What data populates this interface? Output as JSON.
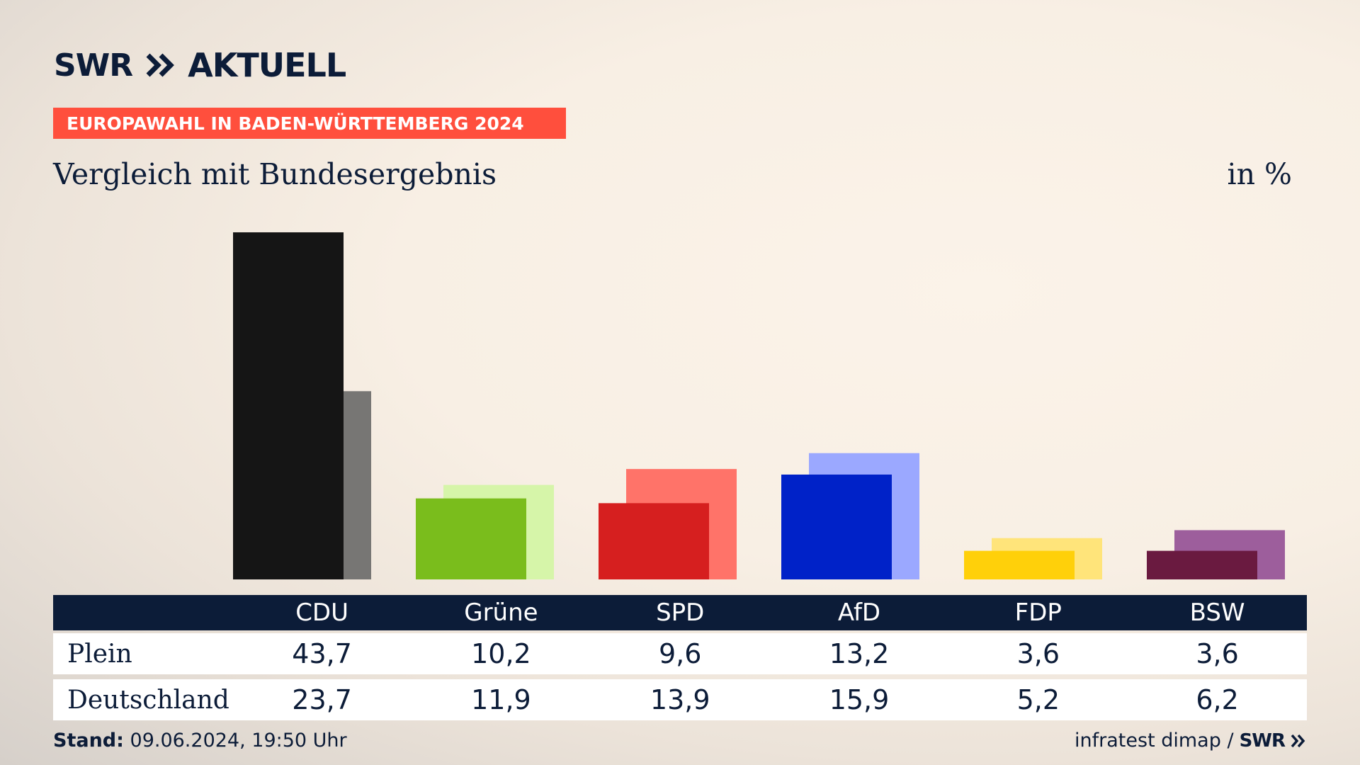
{
  "brand": {
    "swr": "SWR",
    "aktuell": "AKTUELL"
  },
  "banner": "EUROPAWAHL IN BADEN-WÜRTTEMBERG 2024",
  "subtitle": "Vergleich mit Bundesergebnis",
  "unit": "in %",
  "chart_data": {
    "type": "bar",
    "categories": [
      "CDU",
      "Grüne",
      "SPD",
      "AfD",
      "FDP",
      "BSW"
    ],
    "series": [
      {
        "name": "Plein",
        "values": [
          43.7,
          10.2,
          9.6,
          13.2,
          3.6,
          3.6
        ],
        "colors": [
          "#151515",
          "#7abd1c",
          "#d61f1f",
          "#0022c8",
          "#ffd00a",
          "#6a1a40"
        ]
      },
      {
        "name": "Deutschland",
        "values": [
          23.7,
          11.9,
          13.9,
          15.9,
          5.2,
          6.2
        ],
        "colors": [
          "#777674",
          "#d6f5a9",
          "#ff7369",
          "#9ba8ff",
          "#ffe47a",
          "#9d5e9c"
        ]
      }
    ],
    "value_labels": {
      "Plein": [
        "43,7",
        "10,2",
        "9,6",
        "13,2",
        "3,6",
        "3,6"
      ],
      "Deutschland": [
        "23,7",
        "11,9",
        "13,9",
        "15,9",
        "5,2",
        "6,2"
      ]
    },
    "ylim": [
      0,
      43.7
    ],
    "grid": false,
    "legend": "none"
  },
  "footer": {
    "stand_label": "Stand:",
    "stand_value": "09.06.2024, 19:50 Uhr",
    "source": "infratest dimap /",
    "source_brand": "SWR"
  }
}
